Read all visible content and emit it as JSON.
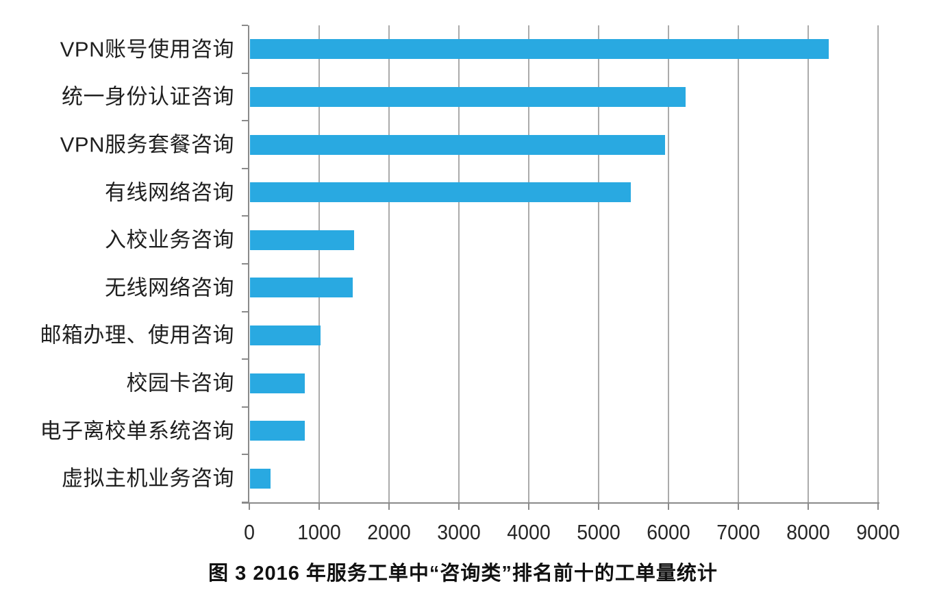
{
  "figure": {
    "caption": "图 3  2016 年服务工单中“咨询类”排名前十的工单量统计"
  },
  "chart_data": {
    "type": "bar",
    "orientation": "horizontal",
    "title": "图 3  2016 年服务工单中“咨询类”排名前十的工单量统计",
    "categories": [
      "VPN账号使用咨询",
      "统一身份认证咨询",
      "VPN服务套餐咨询",
      "有线网络咨询",
      "入校业务咨询",
      "无线网络咨询",
      "邮箱办理、使用咨询",
      "校园卡咨询",
      "电子离校单系统咨询",
      "虚拟主机业务咨询"
    ],
    "values": [
      8280,
      6240,
      5940,
      5450,
      1490,
      1470,
      1010,
      780,
      780,
      290
    ],
    "xlabel": "",
    "ylabel": "",
    "xlim": [
      0,
      9000
    ],
    "x_ticks": [
      0,
      1000,
      2000,
      3000,
      4000,
      5000,
      6000,
      7000,
      8000,
      9000
    ],
    "x_tick_labels": [
      "0",
      "1000",
      "2000",
      "3000",
      "4000",
      "5000",
      "6000",
      "7000",
      "8000",
      "9000"
    ],
    "grid": "vertical-only",
    "legend": "none",
    "value_labels_shown": false,
    "colors": {
      "bar": "#29A9E1",
      "gridline": "#ABABAB",
      "axis": "#8A8A8A",
      "tick_label": "#262626",
      "category_label": "#1F1F1F",
      "caption": "#111111"
    }
  }
}
